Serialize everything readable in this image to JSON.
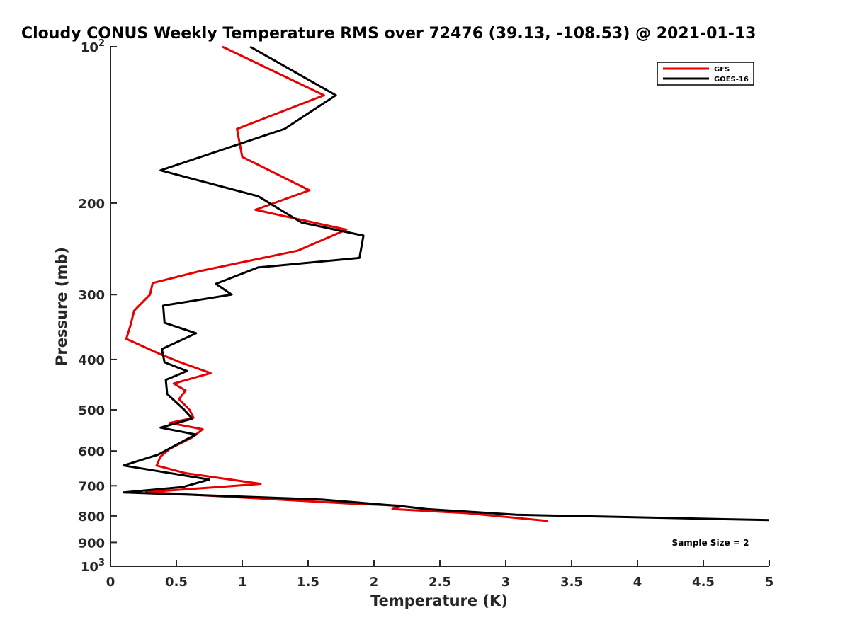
{
  "chart_data": {
    "type": "line",
    "title": "Cloudy CONUS Weekly Temperature RMS over 72476 (39.13, -108.53) @ 2021-01-13",
    "xlabel": "Temperature (K)",
    "ylabel": "Pressure (mb)",
    "xlim": [
      0,
      5
    ],
    "ylim": [
      100,
      1000
    ],
    "y_scale": "log",
    "y_reversed": true,
    "grid": false,
    "legend_position": "top-right",
    "x_ticks": [
      "0",
      "0.5",
      "1",
      "1.5",
      "2",
      "2.5",
      "3",
      "3.5",
      "4",
      "4.5",
      "5"
    ],
    "y_ticks": [
      {
        "value": 100,
        "base": "10",
        "exp": "2"
      },
      {
        "value": 200,
        "label": "200"
      },
      {
        "value": 300,
        "label": "300"
      },
      {
        "value": 400,
        "label": "400"
      },
      {
        "value": 500,
        "label": "500"
      },
      {
        "value": 600,
        "label": "600"
      },
      {
        "value": 700,
        "label": "700"
      },
      {
        "value": 800,
        "label": "800"
      },
      {
        "value": 900,
        "label": "900"
      },
      {
        "value": 1000,
        "base": "10",
        "exp": "3"
      }
    ],
    "annotation": "Sample Size = 2",
    "series": [
      {
        "name": "GFS",
        "color": "#e60000",
        "points": [
          [
            0.85,
            100
          ],
          [
            1.62,
            124
          ],
          [
            0.96,
            144
          ],
          [
            1.0,
            163
          ],
          [
            1.51,
            189
          ],
          [
            1.1,
            206
          ],
          [
            1.79,
            225
          ],
          [
            1.42,
            247
          ],
          [
            0.69,
            270
          ],
          [
            0.32,
            285
          ],
          [
            0.3,
            300
          ],
          [
            0.18,
            322
          ],
          [
            0.15,
            345
          ],
          [
            0.12,
            365
          ],
          [
            0.37,
            390
          ],
          [
            0.53,
            405
          ],
          [
            0.76,
            425
          ],
          [
            0.48,
            445
          ],
          [
            0.57,
            459
          ],
          [
            0.52,
            477
          ],
          [
            0.6,
            500
          ],
          [
            0.63,
            518
          ],
          [
            0.45,
            530
          ],
          [
            0.7,
            545
          ],
          [
            0.62,
            565
          ],
          [
            0.45,
            594
          ],
          [
            0.38,
            615
          ],
          [
            0.35,
            640
          ],
          [
            0.57,
            662
          ],
          [
            1.14,
            694
          ],
          [
            0.82,
            704
          ],
          [
            0.27,
            720
          ],
          [
            1.8,
            757
          ],
          [
            2.22,
            765
          ],
          [
            2.14,
            776
          ],
          [
            2.7,
            790
          ],
          [
            3.32,
            818
          ]
        ]
      },
      {
        "name": "GOES-16",
        "color": "#000000",
        "points": [
          [
            1.06,
            100
          ],
          [
            1.71,
            124
          ],
          [
            1.32,
            144
          ],
          [
            0.38,
            173
          ],
          [
            1.12,
            194
          ],
          [
            1.45,
            218
          ],
          [
            1.92,
            231
          ],
          [
            1.89,
            255
          ],
          [
            1.12,
            266
          ],
          [
            0.8,
            286
          ],
          [
            0.92,
            300
          ],
          [
            0.4,
            315
          ],
          [
            0.41,
            340
          ],
          [
            0.65,
            356
          ],
          [
            0.39,
            382
          ],
          [
            0.41,
            405
          ],
          [
            0.58,
            421
          ],
          [
            0.42,
            438
          ],
          [
            0.43,
            466
          ],
          [
            0.56,
            500
          ],
          [
            0.62,
            520
          ],
          [
            0.38,
            541
          ],
          [
            0.65,
            558
          ],
          [
            0.6,
            566
          ],
          [
            0.36,
            610
          ],
          [
            0.1,
            640
          ],
          [
            0.75,
            681
          ],
          [
            0.55,
            704
          ],
          [
            0.1,
            721
          ],
          [
            1.6,
            744
          ],
          [
            2.2,
            766
          ],
          [
            2.4,
            776
          ],
          [
            3.08,
            796
          ],
          [
            5.0,
            815
          ]
        ]
      }
    ]
  }
}
